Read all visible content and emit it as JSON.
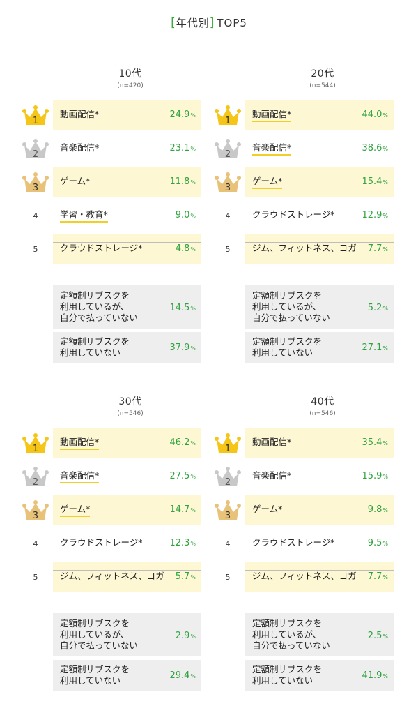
{
  "header": {
    "bracket_open": "[",
    "title": "年代別",
    "bracket_close": "]",
    "suffix": "TOP5"
  },
  "colors": {
    "accent_green": "#2fa33f",
    "highlight_bg": "#fdf7d4",
    "underline": "#f2cf28",
    "gold": "#f5c518",
    "silver": "#c8c8c8",
    "bronze": "#e9c27a"
  },
  "chart_data": [
    {
      "type": "table",
      "age": "10代",
      "n": "(n=420)",
      "ranks": [
        {
          "rank": "1",
          "label": "動画配信*",
          "value": "24.9",
          "unit": "%",
          "underline": false
        },
        {
          "rank": "2",
          "label": "音楽配信*",
          "value": "23.1",
          "unit": "%",
          "underline": false
        },
        {
          "rank": "3",
          "label": "ゲーム*",
          "value": "11.8",
          "unit": "%",
          "underline": false
        },
        {
          "rank": "4",
          "label": "学習・教育*",
          "value": "9.0",
          "unit": "%",
          "underline": true
        },
        {
          "rank": "5",
          "label": "クラウドストレージ*",
          "value": "4.8",
          "unit": "%",
          "underline": false
        }
      ],
      "others": [
        {
          "lines": [
            "定額制サブスクを",
            "利用しているが、",
            "自分で払っていない"
          ],
          "value": "14.5",
          "unit": "%"
        },
        {
          "lines": [
            "定額制サブスクを",
            "利用していない"
          ],
          "value": "37.9",
          "unit": "%"
        }
      ]
    },
    {
      "type": "table",
      "age": "20代",
      "n": "(n=544)",
      "ranks": [
        {
          "rank": "1",
          "label": "動画配信*",
          "value": "44.0",
          "unit": "%",
          "underline": true
        },
        {
          "rank": "2",
          "label": "音楽配信*",
          "value": "38.6",
          "unit": "%",
          "underline": true
        },
        {
          "rank": "3",
          "label": "ゲーム*",
          "value": "15.4",
          "unit": "%",
          "underline": true
        },
        {
          "rank": "4",
          "label": "クラウドストレージ*",
          "value": "12.9",
          "unit": "%",
          "underline": false
        },
        {
          "rank": "5",
          "label": "ジム、フィットネス、ヨガ",
          "value": "7.7",
          "unit": "%",
          "underline": false
        }
      ],
      "others": [
        {
          "lines": [
            "定額制サブスクを",
            "利用しているが、",
            "自分で払っていない"
          ],
          "value": "5.2",
          "unit": "%"
        },
        {
          "lines": [
            "定額制サブスクを",
            "利用していない"
          ],
          "value": "27.1",
          "unit": "%"
        }
      ]
    },
    {
      "type": "table",
      "age": "30代",
      "n": "(n=546)",
      "ranks": [
        {
          "rank": "1",
          "label": "動画配信*",
          "value": "46.2",
          "unit": "%",
          "underline": true
        },
        {
          "rank": "2",
          "label": "音楽配信*",
          "value": "27.5",
          "unit": "%",
          "underline": true
        },
        {
          "rank": "3",
          "label": "ゲーム*",
          "value": "14.7",
          "unit": "%",
          "underline": true
        },
        {
          "rank": "4",
          "label": "クラウドストレージ*",
          "value": "12.3",
          "unit": "%",
          "underline": false
        },
        {
          "rank": "5",
          "label": "ジム、フィットネス、ヨガ",
          "value": "5.7",
          "unit": "%",
          "underline": false
        }
      ],
      "others": [
        {
          "lines": [
            "定額制サブスクを",
            "利用しているが、",
            "自分で払っていない"
          ],
          "value": "2.9",
          "unit": "%"
        },
        {
          "lines": [
            "定額制サブスクを",
            "利用していない"
          ],
          "value": "29.4",
          "unit": "%"
        }
      ]
    },
    {
      "type": "table",
      "age": "40代",
      "n": "(n=546)",
      "ranks": [
        {
          "rank": "1",
          "label": "動画配信*",
          "value": "35.4",
          "unit": "%",
          "underline": false
        },
        {
          "rank": "2",
          "label": "音楽配信*",
          "value": "15.9",
          "unit": "%",
          "underline": false
        },
        {
          "rank": "3",
          "label": "ゲーム*",
          "value": "9.8",
          "unit": "%",
          "underline": false
        },
        {
          "rank": "4",
          "label": "クラウドストレージ*",
          "value": "9.5",
          "unit": "%",
          "underline": false
        },
        {
          "rank": "5",
          "label": "ジム、フィットネス、ヨガ",
          "value": "7.7",
          "unit": "%",
          "underline": false
        }
      ],
      "others": [
        {
          "lines": [
            "定額制サブスクを",
            "利用しているが、",
            "自分で払っていない"
          ],
          "value": "2.5",
          "unit": "%"
        },
        {
          "lines": [
            "定額制サブスクを",
            "利用していない"
          ],
          "value": "41.9",
          "unit": "%"
        }
      ]
    }
  ]
}
